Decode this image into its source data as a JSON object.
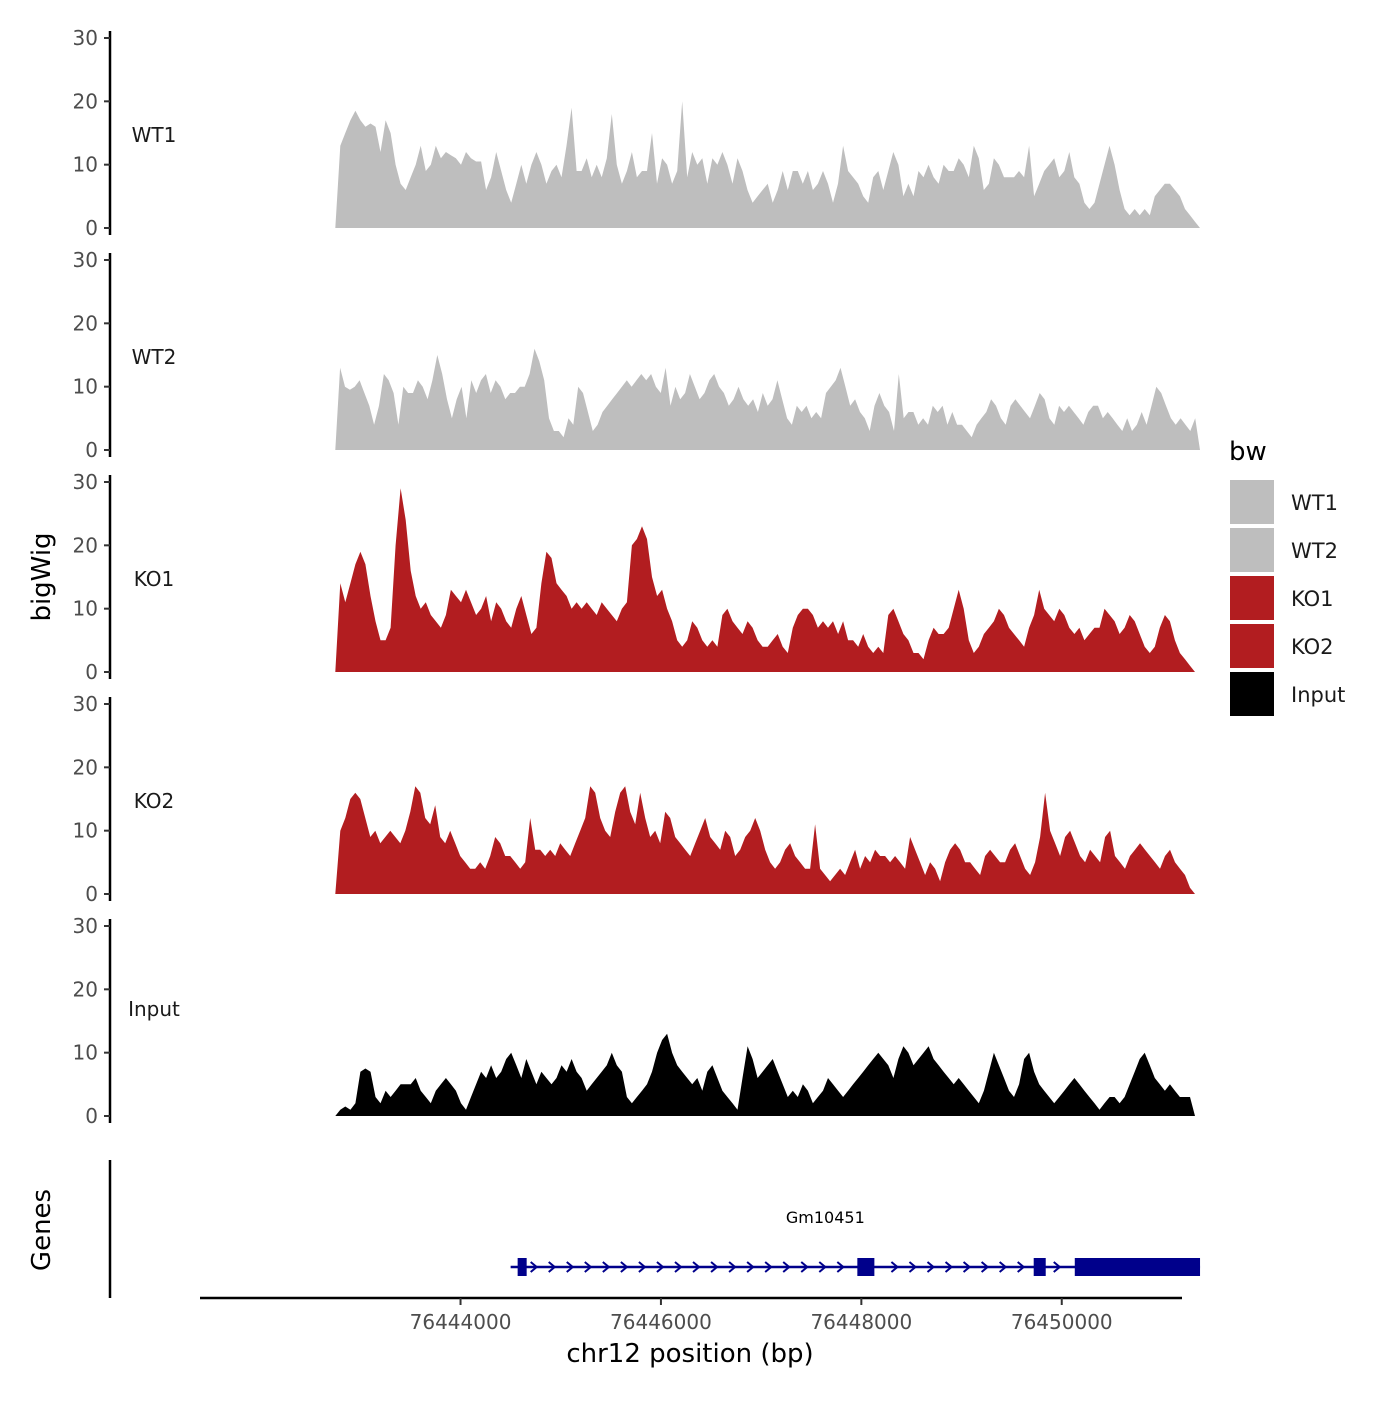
{
  "chart_data": {
    "type": "area",
    "title": "",
    "xlabel": "chr12 position (bp)",
    "ylabel": "bigWig",
    "gene_panel_label": "Genes",
    "xlim": [
      76441400,
      76451200
    ],
    "ylim": [
      0,
      30
    ],
    "yticks": [
      "0",
      "10",
      "20",
      "30"
    ],
    "xticks": [
      {
        "value": 76444000,
        "label": "76444000"
      },
      {
        "value": 76446000,
        "label": "76446000"
      },
      {
        "value": 76448000,
        "label": "76448000"
      },
      {
        "value": 76450000,
        "label": "76450000"
      }
    ],
    "legend": {
      "title": "bw",
      "position": "right",
      "entries": [
        {
          "name": "WT1",
          "color": "#bebebe"
        },
        {
          "name": "WT2",
          "color": "#bebebe"
        },
        {
          "name": "KO1",
          "color": "#b21d20"
        },
        {
          "name": "KO2",
          "color": "#b21d20"
        },
        {
          "name": "Input",
          "color": "#000000"
        }
      ]
    },
    "series": [
      {
        "name": "WT1",
        "color": "#bebebe",
        "x_start": 76442750,
        "x_end": 76451380,
        "values": [
          0,
          13,
          15,
          17,
          18.5,
          17,
          16,
          16.5,
          16,
          12,
          17,
          15,
          10,
          7,
          6,
          8,
          10,
          13,
          9,
          10,
          13,
          11,
          12,
          11.5,
          11,
          10,
          12,
          11,
          10.5,
          10.5,
          6,
          8,
          12,
          9,
          6,
          4,
          7,
          10,
          7,
          10,
          12,
          10,
          7,
          9,
          10,
          8,
          13,
          19,
          9,
          9,
          11,
          8,
          10,
          8,
          11,
          18,
          10,
          7,
          9,
          12,
          8,
          9,
          9,
          15,
          7,
          11,
          10,
          7,
          9,
          20,
          8,
          12,
          10,
          11,
          7,
          11,
          10,
          12,
          10,
          7,
          11,
          9,
          6,
          4,
          5,
          6,
          7,
          4,
          6,
          9,
          6,
          9,
          9,
          7,
          9,
          6,
          7,
          9,
          7,
          4,
          7,
          13,
          9,
          8,
          7,
          5,
          4,
          8,
          9,
          6,
          9,
          12,
          10,
          5,
          7,
          5,
          9,
          8,
          10,
          8,
          7,
          10,
          9,
          9,
          11,
          10,
          8,
          13,
          11,
          6,
          7,
          11,
          10,
          8,
          8,
          8,
          9,
          8,
          13,
          5,
          7,
          9,
          10,
          11,
          8,
          9,
          12,
          8,
          7,
          4,
          3,
          4,
          7,
          10,
          13,
          10,
          6,
          3,
          2,
          3,
          2,
          3,
          2,
          5,
          6,
          7,
          7,
          6,
          5,
          3,
          2,
          1,
          0
        ]
      },
      {
        "name": "WT2",
        "color": "#bebebe",
        "x_start": 76442750,
        "x_end": 76451380,
        "values": [
          0,
          13,
          10,
          9.5,
          10,
          11,
          9,
          7,
          4,
          7,
          12,
          11,
          9,
          4,
          10,
          9,
          9,
          11,
          10,
          8,
          11,
          15,
          12,
          8,
          5,
          8,
          10,
          5,
          11,
          9,
          11,
          12,
          9,
          11,
          10,
          8,
          9,
          9,
          10,
          10,
          12,
          16,
          14,
          11,
          5,
          3,
          3,
          2,
          5,
          4,
          10,
          9,
          6,
          3,
          4,
          6,
          7,
          8,
          9,
          10,
          11,
          10,
          11,
          12,
          11,
          12,
          10,
          9,
          13,
          7,
          10,
          8,
          9,
          12,
          10,
          8,
          9,
          11,
          12,
          10,
          9,
          7,
          8,
          10,
          8,
          7,
          8,
          6,
          9,
          7,
          8,
          11,
          8,
          5,
          4,
          7,
          6,
          7,
          5,
          6,
          5,
          9,
          10,
          11,
          13,
          10,
          7,
          8,
          6,
          5,
          3,
          7,
          9,
          7,
          6,
          3,
          12,
          5,
          6,
          6,
          4,
          5,
          4,
          7,
          6,
          7,
          4,
          6,
          4,
          4,
          3,
          2,
          4,
          5,
          6,
          8,
          7,
          5,
          4,
          7,
          8,
          7,
          6,
          5,
          7,
          9,
          8,
          5,
          4,
          7,
          6,
          7,
          6,
          5,
          4,
          6,
          7,
          7,
          5,
          6,
          5,
          4,
          3,
          5,
          3,
          4,
          6,
          4,
          7,
          10,
          9,
          7,
          5,
          4,
          5,
          4,
          3,
          5,
          0
        ]
      },
      {
        "name": "KO1",
        "color": "#b21d20",
        "x_start": 76442750,
        "x_end": 76451330,
        "values": [
          0,
          14,
          11,
          14,
          17,
          19,
          17,
          12,
          8,
          5,
          5,
          7,
          20,
          29,
          24,
          16,
          12,
          10,
          11,
          9,
          8,
          7,
          9,
          13,
          12,
          11,
          13,
          11,
          9,
          10,
          12,
          8,
          11,
          10,
          8,
          7,
          10,
          12,
          9,
          6,
          7,
          14,
          19,
          18,
          14,
          13,
          12,
          10,
          11,
          10,
          11,
          10,
          9,
          11,
          10,
          9,
          8,
          10,
          11,
          20,
          21,
          23,
          21,
          15,
          12,
          13,
          10,
          8,
          5,
          4,
          5,
          8,
          7,
          5,
          4,
          5,
          4,
          9,
          10,
          8,
          7,
          6,
          8,
          7,
          5,
          4,
          4,
          5,
          6,
          4,
          3,
          7,
          9,
          10,
          10,
          9,
          7,
          8,
          7,
          8,
          6,
          8,
          5,
          5,
          4,
          6,
          4,
          3,
          4,
          3,
          9,
          10,
          8,
          6,
          5,
          3,
          3,
          2,
          5,
          7,
          6,
          6,
          7,
          10,
          13,
          10,
          5,
          3,
          4,
          6,
          7,
          8,
          10,
          9,
          7,
          6,
          5,
          4,
          7,
          9,
          13,
          10,
          9,
          8,
          10,
          9,
          7,
          6,
          7,
          5,
          6,
          7,
          7,
          10,
          9,
          8,
          6,
          7,
          9,
          8,
          6,
          4,
          3,
          4,
          7,
          9,
          8,
          5,
          3,
          2,
          1,
          0
        ]
      },
      {
        "name": "KO2",
        "color": "#b21d20",
        "x_start": 76442750,
        "x_end": 76451330,
        "values": [
          0,
          10,
          12,
          15,
          16,
          15,
          12,
          9,
          10,
          8,
          9,
          10,
          9,
          8,
          10,
          13,
          17,
          16,
          12,
          11,
          14,
          9,
          8,
          10,
          8,
          6,
          5,
          4,
          4,
          5,
          4,
          6,
          9,
          8,
          6,
          6,
          5,
          4,
          5,
          12,
          7,
          7,
          6,
          7,
          6,
          8,
          7,
          6,
          8,
          10,
          12,
          17,
          16,
          12,
          10,
          9,
          13,
          16,
          17,
          13,
          11,
          16,
          12,
          9,
          10,
          8,
          13,
          12,
          9,
          8,
          7,
          6,
          8,
          10,
          12,
          9,
          8,
          7,
          10,
          9,
          6,
          7,
          9,
          10,
          12,
          10,
          7,
          5,
          4,
          5,
          7,
          8,
          6,
          5,
          4,
          4,
          11,
          4,
          3,
          2,
          3,
          4,
          3,
          5,
          7,
          4,
          6,
          5,
          7,
          6,
          6,
          5,
          6,
          5,
          4,
          9,
          7,
          5,
          3,
          5,
          4,
          2,
          5,
          7,
          8,
          7,
          5,
          5,
          4,
          3,
          6,
          7,
          6,
          5,
          5,
          7,
          8,
          6,
          4,
          3,
          5,
          9,
          16,
          10,
          8,
          6,
          9,
          10,
          8,
          6,
          5,
          7,
          6,
          5,
          9,
          10,
          6,
          5,
          4,
          6,
          7,
          8,
          7,
          6,
          5,
          4,
          6,
          7,
          5,
          4,
          3,
          1,
          0
        ]
      },
      {
        "name": "Input",
        "color": "#000000",
        "x_start": 76442750,
        "x_end": 76451330,
        "values": [
          0,
          1,
          1.5,
          1,
          2,
          7,
          7.5,
          7,
          3,
          2,
          4,
          3,
          4,
          5,
          5,
          5,
          6,
          4,
          3,
          2,
          4,
          5,
          6,
          5,
          4,
          2,
          1,
          3,
          5,
          7,
          6,
          8,
          6,
          7,
          9,
          10,
          8,
          6,
          9,
          7,
          5,
          7,
          6,
          5,
          6,
          8,
          7,
          9,
          7,
          6,
          4,
          5,
          6,
          7,
          8,
          10,
          8,
          7,
          3,
          2,
          3,
          4,
          5,
          7,
          10,
          12,
          13,
          10,
          8,
          7,
          6,
          5,
          6,
          4,
          7,
          8,
          6,
          4,
          3,
          2,
          1,
          6,
          11,
          9,
          6,
          7,
          8,
          9,
          7,
          5,
          3,
          4,
          3,
          5,
          4,
          2,
          3,
          4,
          6,
          5,
          4,
          3,
          4,
          5,
          6,
          7,
          8,
          9,
          10,
          9,
          8,
          6,
          9,
          11,
          10,
          8,
          9,
          10,
          11,
          9,
          8,
          7,
          6,
          5,
          6,
          5,
          4,
          3,
          2,
          4,
          7,
          10,
          8,
          6,
          4,
          3,
          5,
          9,
          10,
          7,
          5,
          4,
          3,
          2,
          3,
          4,
          5,
          6,
          5,
          4,
          3,
          2,
          1,
          2,
          3,
          3,
          2,
          3,
          5,
          7,
          9,
          10,
          8,
          6,
          5,
          4,
          5,
          4,
          3,
          3,
          3,
          0
        ]
      }
    ],
    "gene": {
      "name": "Gm10451",
      "start": 76444500,
      "end": 76451380,
      "strand": "+",
      "exons": [
        [
          76444570,
          76444660
        ],
        [
          76447960,
          76448130
        ],
        [
          76449720,
          76449840
        ],
        [
          76450130,
          76451380
        ]
      ]
    }
  }
}
